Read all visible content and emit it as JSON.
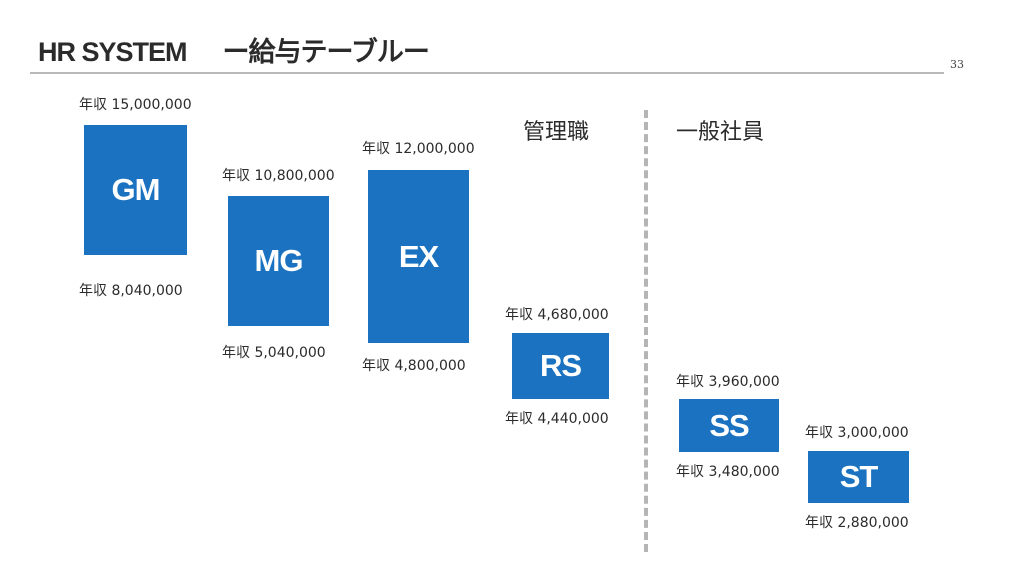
{
  "header": {
    "system": "HR SYSTEM",
    "subtitle": "ー給与テーブルー",
    "page_number": "33"
  },
  "sections": {
    "management": "管理職",
    "general": "一般社員"
  },
  "grades": [
    {
      "code": "GM",
      "max": "年収 15,000,000",
      "min": "年収 8,040,000"
    },
    {
      "code": "MG",
      "max": "年収 10,800,000",
      "min": "年収 5,040,000"
    },
    {
      "code": "EX",
      "max": "年収 12,000,000",
      "min": "年収 4,800,000"
    },
    {
      "code": "RS",
      "max": "年収 4,680,000",
      "min": "年収 4,440,000"
    },
    {
      "code": "SS",
      "max": "年収 3,960,000",
      "min": "年収 3,480,000"
    },
    {
      "code": "ST",
      "max": "年収 3,000,000",
      "min": "年収 2,880,000"
    }
  ],
  "colors": {
    "box": "#1a72c0",
    "rule": "#b8b8b8",
    "divider": "#b5b5b5"
  }
}
